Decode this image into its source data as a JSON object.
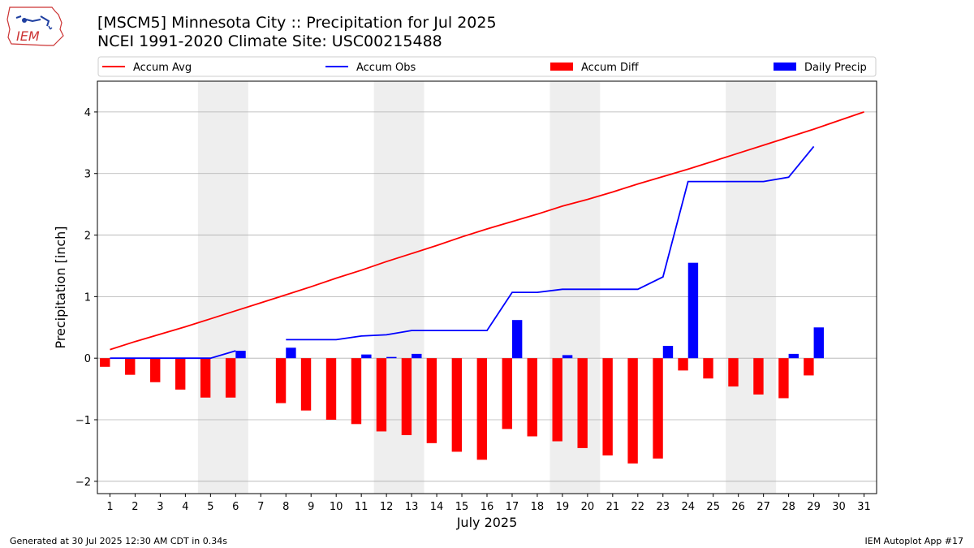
{
  "header": {
    "title": "[MSCM5] Minnesota City :: Precipitation for Jul 2025",
    "subtitle": "NCEI 1991-2020 Climate Site: USC00215488",
    "logo_text": "IEM"
  },
  "footer": {
    "generated": "Generated at 30 Jul 2025 12:30 AM CDT in 0.34s",
    "app": "IEM Autoplot App #17"
  },
  "colors": {
    "accum_avg": "#ff0000",
    "accum_obs": "#0000ff",
    "accum_diff": "#ff0000",
    "daily_precip": "#0000ff",
    "weekend_shade": "#eeeeee",
    "grid": "#b0b0b0"
  },
  "chart_data": {
    "type": "bar",
    "xlabel": "July 2025",
    "ylabel": "Precipitation [inch]",
    "ylim": [
      -2.2,
      4.5
    ],
    "xlim": [
      0.5,
      31.5
    ],
    "y_ticks": [
      -2,
      -1,
      0,
      1,
      2,
      3,
      4
    ],
    "y_tick_labels": [
      "−2",
      "−1",
      "0",
      "1",
      "2",
      "3",
      "4"
    ],
    "x_ticks": [
      1,
      2,
      3,
      4,
      5,
      6,
      7,
      8,
      9,
      10,
      11,
      12,
      13,
      14,
      15,
      16,
      17,
      18,
      19,
      20,
      21,
      22,
      23,
      24,
      25,
      26,
      27,
      28,
      29,
      30,
      31
    ],
    "grid": "horizontal",
    "legend_position": "top",
    "weekend_bands": [
      [
        5,
        6
      ],
      [
        12,
        13
      ],
      [
        19,
        20
      ],
      [
        26,
        27
      ]
    ],
    "series": [
      {
        "name": "Accum Avg",
        "type": "line",
        "x": [
          1,
          2,
          3,
          4,
          5,
          6,
          7,
          8,
          9,
          10,
          11,
          12,
          13,
          14,
          15,
          16,
          17,
          18,
          19,
          20,
          21,
          22,
          23,
          24,
          25,
          26,
          27,
          28,
          29,
          30,
          31
        ],
        "values": [
          0.14,
          0.27,
          0.39,
          0.51,
          0.64,
          0.77,
          0.9,
          1.03,
          1.16,
          1.3,
          1.43,
          1.57,
          1.7,
          1.83,
          1.97,
          2.1,
          2.22,
          2.34,
          2.47,
          2.58,
          2.7,
          2.83,
          2.95,
          3.07,
          3.2,
          3.33,
          3.46,
          3.59,
          3.72,
          3.86,
          4.0
        ]
      },
      {
        "name": "Accum Obs",
        "type": "line",
        "x": [
          1,
          2,
          3,
          4,
          5,
          6,
          7,
          8,
          9,
          10,
          11,
          12,
          13,
          14,
          15,
          16,
          17,
          18,
          19,
          20,
          21,
          22,
          23,
          24,
          25,
          26,
          27,
          28,
          29
        ],
        "values": [
          0.0,
          0.0,
          0.0,
          0.0,
          0.0,
          0.12,
          null,
          0.3,
          0.3,
          0.3,
          0.36,
          0.38,
          0.45,
          0.45,
          0.45,
          0.45,
          1.07,
          1.07,
          1.12,
          1.12,
          1.12,
          1.12,
          1.32,
          2.87,
          2.87,
          2.87,
          2.87,
          2.94,
          3.44
        ]
      },
      {
        "name": "Accum Diff",
        "type": "bar",
        "x": [
          1,
          2,
          3,
          4,
          5,
          6,
          7,
          8,
          9,
          10,
          11,
          12,
          13,
          14,
          15,
          16,
          17,
          18,
          19,
          20,
          21,
          22,
          23,
          24,
          25,
          26,
          27,
          28,
          29
        ],
        "values": [
          -0.14,
          -0.27,
          -0.39,
          -0.51,
          -0.64,
          -0.64,
          null,
          -0.73,
          -0.85,
          -1.0,
          -1.07,
          -1.19,
          -1.25,
          -1.38,
          -1.52,
          -1.65,
          -1.15,
          -1.27,
          -1.35,
          -1.46,
          -1.58,
          -1.71,
          -1.63,
          -0.2,
          -0.33,
          -0.46,
          -0.59,
          -0.65,
          -0.28
        ]
      },
      {
        "name": "Daily Precip",
        "type": "bar",
        "x": [
          1,
          2,
          3,
          4,
          5,
          6,
          7,
          8,
          9,
          10,
          11,
          12,
          13,
          14,
          15,
          16,
          17,
          18,
          19,
          20,
          21,
          22,
          23,
          24,
          25,
          26,
          27,
          28,
          29
        ],
        "values": [
          0.0,
          0.0,
          0.0,
          0.0,
          0.0,
          0.12,
          null,
          0.17,
          0.0,
          0.0,
          0.06,
          0.02,
          0.07,
          0.0,
          0.0,
          0.0,
          0.62,
          0.0,
          0.05,
          0.0,
          0.0,
          0.0,
          0.2,
          1.55,
          0.0,
          0.0,
          0.0,
          0.07,
          0.5
        ]
      }
    ]
  }
}
